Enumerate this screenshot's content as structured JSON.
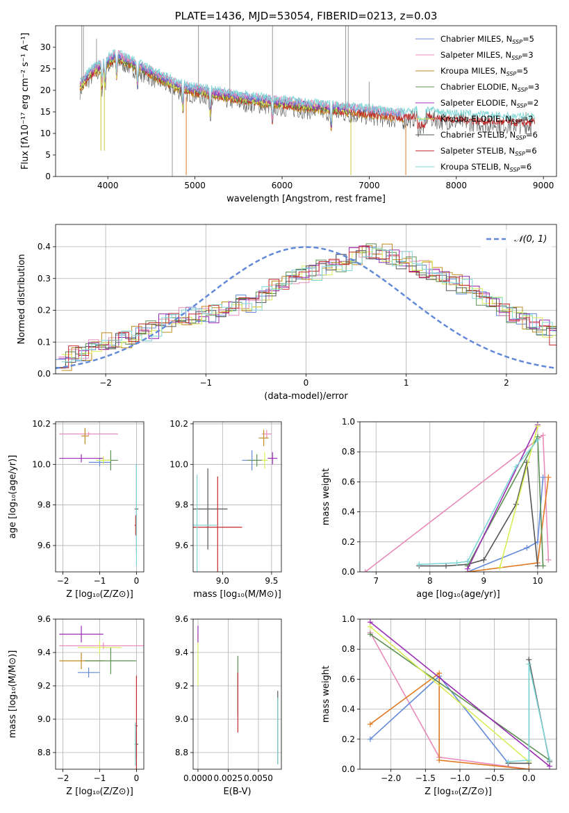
{
  "colors": {
    "Chabrier MILES": "#6289d8",
    "Salpeter MILES": "#e88bba",
    "Kroupa MILES": "#c18a1f",
    "Chabrier ELODIE": "#5b8f52",
    "Salpeter ELODIE": "#9a2bb3",
    "Kroupa ELODIE": "#d9ec55",
    "Chabrier STELIB": "#555555",
    "Salpeter STELIB": "#c42a2a",
    "Kroupa STELIB": "#7fd6d6",
    "spectrum_dark": "#777777",
    "orange": "#e07a22",
    "gauss": "#6289d8"
  },
  "chart_data": [
    {
      "id": "spectrum",
      "type": "line",
      "title": "PLATE=1436, MJD=53054, FIBERID=0213, z=0.03",
      "xlabel": "wavelength [Angstrom, rest frame]",
      "ylabel": "Flux [fλ10⁻¹⁷ erg cm⁻² s⁻¹ A⁻¹]",
      "xlim": [
        3400,
        9150
      ],
      "ylim": [
        0,
        35
      ],
      "xticks": [
        4000,
        5000,
        6000,
        7000,
        8000,
        9000
      ],
      "yticks": [
        0,
        5,
        10,
        15,
        20,
        25,
        30
      ],
      "grid": false,
      "legend_position": "top-right",
      "legend": [
        {
          "name": "Chabrier MILES",
          "n": "N_SSP=5"
        },
        {
          "name": "Salpeter MILES",
          "n": "N_SSP=3"
        },
        {
          "name": "Kroupa MILES",
          "n": "N_SSP=5"
        },
        {
          "name": "Chabrier ELODIE",
          "n": "N_SSP=3"
        },
        {
          "name": "Salpeter ELODIE",
          "n": "N_SSP=2"
        },
        {
          "name": "Kroupa ELODIE",
          "n": "N_SSP=2"
        },
        {
          "name": "Chabrier STELIB",
          "n": "N_SSP=6"
        },
        {
          "name": "Salpeter STELIB",
          "n": "N_SSP=6"
        },
        {
          "name": "Kroupa STELIB",
          "n": "N_SSP=6"
        }
      ],
      "continuum": [
        [
          3680,
          21
        ],
        [
          3800,
          24
        ],
        [
          3950,
          26
        ],
        [
          4100,
          28
        ],
        [
          4300,
          26
        ],
        [
          4500,
          24
        ],
        [
          4800,
          21
        ],
        [
          5000,
          20
        ],
        [
          5300,
          19
        ],
        [
          5600,
          18
        ],
        [
          6000,
          17
        ],
        [
          6500,
          16
        ],
        [
          7000,
          15
        ],
        [
          7400,
          14
        ],
        [
          7600,
          15
        ],
        [
          7800,
          14
        ],
        [
          8200,
          13.5
        ],
        [
          8600,
          13
        ],
        [
          8900,
          13
        ]
      ]
    },
    {
      "id": "histogram",
      "type": "step",
      "xlabel": "(data-model)/error",
      "ylabel": "Normed distribution",
      "xlim": [
        -2.5,
        2.5
      ],
      "ylim": [
        0,
        0.47
      ],
      "xticks": [
        -2,
        -1,
        0,
        1,
        2
      ],
      "yticks": [
        0.0,
        0.1,
        0.2,
        0.3,
        0.4
      ],
      "grid": true,
      "legend_position": "top-right",
      "gauss_label": "𝒩(0, 1)",
      "bin_width": 0.1,
      "base_values": [
        0.04,
        0.06,
        0.07,
        0.09,
        0.1,
        0.1,
        0.11,
        0.12,
        0.13,
        0.14,
        0.16,
        0.17,
        0.18,
        0.18,
        0.19,
        0.19,
        0.2,
        0.21,
        0.22,
        0.22,
        0.25,
        0.27,
        0.28,
        0.3,
        0.31,
        0.32,
        0.33,
        0.34,
        0.35,
        0.37,
        0.38,
        0.39,
        0.38,
        0.37,
        0.36,
        0.35,
        0.33,
        0.32,
        0.3,
        0.29,
        0.28,
        0.26,
        0.24,
        0.22,
        0.2,
        0.19,
        0.17,
        0.16,
        0.14,
        0.12
      ]
    },
    {
      "id": "age_vs_Z",
      "type": "errorbar",
      "xlabel": "Z [log₁₀(Z/Z⊙)]",
      "ylabel": "age  [log₁₀(age/yr)]",
      "xlim": [
        -2.2,
        0.2
      ],
      "ylim": [
        9.47,
        10.21
      ],
      "xticks": [
        -2,
        -1,
        0
      ],
      "yticks": [
        9.6,
        9.8,
        10.0,
        10.2
      ],
      "points": [
        {
          "s": "Chabrier MILES",
          "x": -1.0,
          "xe": 0.3,
          "y": 10.01,
          "ye": 0.02
        },
        {
          "s": "Salpeter MILES",
          "x": -1.3,
          "xe": 0.8,
          "y": 10.15,
          "ye": 0.01
        },
        {
          "s": "Kroupa MILES",
          "x": -1.4,
          "xe": 0.1,
          "y": 10.14,
          "ye": 0.04
        },
        {
          "s": "Chabrier ELODIE",
          "x": -0.7,
          "xe": 0.2,
          "y": 10.02,
          "ye": 0.05
        },
        {
          "s": "Salpeter ELODIE",
          "x": -1.5,
          "xe": 0.6,
          "y": 10.03,
          "ye": 0.02
        },
        {
          "s": "Kroupa ELODIE",
          "x": -0.9,
          "xe": 0.2,
          "y": 10.02,
          "ye": 0.02
        },
        {
          "s": "Chabrier STELIB",
          "x": 0.0,
          "xe": 0.05,
          "y": 9.78,
          "ye": 0.22
        },
        {
          "s": "Salpeter STELIB",
          "x": -0.02,
          "xe": 0.03,
          "y": 9.7,
          "ye": 0.05
        },
        {
          "s": "Kroupa STELIB",
          "x": 0.0,
          "xe": 0.02,
          "y": 9.75,
          "ye": 0.25
        }
      ]
    },
    {
      "id": "age_vs_mass",
      "type": "errorbar",
      "xlabel": "mass [log₁₀(M/M⊙)]",
      "ylabel": "",
      "xlim": [
        8.7,
        9.6
      ],
      "ylim": [
        9.47,
        10.21
      ],
      "xticks": [
        9.0,
        9.5
      ],
      "yticks": [
        9.6,
        9.8,
        10.0,
        10.2
      ],
      "points": [
        {
          "s": "Chabrier MILES",
          "x": 9.3,
          "xe": 0.1,
          "y": 10.02,
          "ye": 0.05
        },
        {
          "s": "Salpeter MILES",
          "x": 9.45,
          "xe": 0.05,
          "y": 10.15,
          "ye": 0.02
        },
        {
          "s": "Kroupa MILES",
          "x": 9.42,
          "xe": 0.05,
          "y": 10.13,
          "ye": 0.04
        },
        {
          "s": "Chabrier ELODIE",
          "x": 9.35,
          "xe": 0.1,
          "y": 10.02,
          "ye": 0.03
        },
        {
          "s": "Salpeter ELODIE",
          "x": 9.51,
          "xe": 0.05,
          "y": 10.03,
          "ye": 0.03
        },
        {
          "s": "Kroupa ELODIE",
          "x": 9.43,
          "xe": 0.03,
          "y": 10.02,
          "ye": 0.04
        },
        {
          "s": "Chabrier STELIB",
          "x": 8.85,
          "xe": 0.2,
          "y": 9.78,
          "ye": 0.2
        },
        {
          "s": "Salpeter STELIB",
          "x": 8.95,
          "xe": 0.25,
          "y": 9.69,
          "ye": 0.25
        },
        {
          "s": "Kroupa STELIB",
          "x": 8.74,
          "xe": 0.2,
          "y": 9.7,
          "ye": 0.25
        }
      ]
    },
    {
      "id": "weight_vs_age",
      "type": "line",
      "xlabel": "age  [log₁₀(age/yr)]",
      "ylabel": "mass weight",
      "xlim": [
        6.7,
        10.35
      ],
      "ylim": [
        0,
        1
      ],
      "xticks": [
        7,
        8,
        9,
        10
      ],
      "yticks": [
        0.0,
        0.2,
        0.4,
        0.6,
        0.8,
        1.0
      ],
      "series": [
        {
          "s": "Salpeter MILES",
          "x": [
            6.8,
            10.1,
            10.2
          ],
          "y": [
            0.0,
            0.91,
            0.08
          ]
        },
        {
          "s": "Chabrier MILES",
          "x": [
            8.7,
            9.8,
            10.0,
            10.1
          ],
          "y": [
            0.0,
            0.16,
            0.2,
            0.63
          ]
        },
        {
          "s": "Kroupa MILES",
          "x": [
            8.7,
            10.0,
            10.2
          ],
          "y": [
            0.0,
            0.06,
            0.63
          ]
        },
        {
          "s": "Chabrier STELIB",
          "x": [
            7.8,
            8.3,
            8.7,
            9.0,
            9.6,
            9.8,
            10.0
          ],
          "y": [
            0.04,
            0.04,
            0.05,
            0.08,
            0.45,
            0.73,
            0.04
          ]
        },
        {
          "s": "Chabrier ELODIE",
          "x": [
            8.7,
            10.0,
            10.1
          ],
          "y": [
            0.04,
            0.9,
            0.04
          ]
        },
        {
          "s": "Salpeter ELODIE",
          "x": [
            8.7,
            10.0
          ],
          "y": [
            0.02,
            0.98
          ]
        },
        {
          "s": "Kroupa ELODIE",
          "x": [
            9.3,
            10.0
          ],
          "y": [
            0.03,
            0.97
          ]
        },
        {
          "s": "Kroupa STELIB",
          "x": [
            7.8,
            8.5,
            8.7,
            9.6,
            10.0
          ],
          "y": [
            0.05,
            0.06,
            0.07,
            0.7,
            0.88
          ]
        }
      ]
    },
    {
      "id": "mass_vs_Z",
      "type": "errorbar",
      "xlabel": "Z [log₁₀(Z/Z⊙)]",
      "ylabel": "mass [log₁₀(M/M⊙)]",
      "xlim": [
        -2.2,
        0.2
      ],
      "ylim": [
        8.7,
        9.6
      ],
      "xticks": [
        -2,
        -1,
        0
      ],
      "yticks": [
        8.8,
        9.0,
        9.2,
        9.4,
        9.6
      ],
      "points": [
        {
          "s": "Chabrier MILES",
          "x": -1.3,
          "xe": 0.3,
          "y": 9.28,
          "ye": 0.03
        },
        {
          "s": "Salpeter MILES",
          "x": -0.9,
          "xe": 1.2,
          "y": 9.44,
          "ye": 0.02
        },
        {
          "s": "Kroupa MILES",
          "x": -1.5,
          "xe": 0.6,
          "y": 9.35,
          "ye": 0.05
        },
        {
          "s": "Chabrier ELODIE",
          "x": -0.7,
          "xe": 0.7,
          "y": 9.35,
          "ye": 0.08
        },
        {
          "s": "Salpeter ELODIE",
          "x": -1.5,
          "xe": 0.6,
          "y": 9.51,
          "ye": 0.05
        },
        {
          "s": "Kroupa ELODIE",
          "x": -1.0,
          "xe": 0.6,
          "y": 9.43,
          "ye": 0.04
        },
        {
          "s": "Chabrier STELIB",
          "x": 0.0,
          "xe": 0.05,
          "y": 8.85,
          "ye": 0.08
        },
        {
          "s": "Salpeter STELIB",
          "x": 0.0,
          "xe": 0.03,
          "y": 8.96,
          "ye": 0.3
        },
        {
          "s": "Kroupa STELIB",
          "x": -0.03,
          "xe": 0.02,
          "y": 8.85,
          "ye": 0.13
        }
      ]
    },
    {
      "id": "mass_vs_ebv",
      "type": "errorbar",
      "xlabel": "E(B-V)",
      "ylabel": "",
      "xlim": [
        -0.0004,
        0.0069
      ],
      "ylim": [
        8.7,
        9.6
      ],
      "xticks": [
        0.0,
        0.0025,
        0.005
      ],
      "xtick_labels": [
        "0.0000",
        "0.0025",
        "0.0050"
      ],
      "yticks": [
        8.8,
        9.0,
        9.2,
        9.4,
        9.6
      ],
      "points": [
        {
          "s": "Kroupa ELODIE",
          "x": 0.0,
          "xe": 0.0,
          "y": 9.35,
          "ye": 0.15
        },
        {
          "s": "Salpeter ELODIE",
          "x": 0.0,
          "xe": 0.0,
          "y": 9.51,
          "ye": 0.05
        },
        {
          "s": "Chabrier ELODIE",
          "x": 0.0033,
          "xe": 0.0,
          "y": 9.2,
          "ye": 0.18
        },
        {
          "s": "Salpeter STELIB",
          "x": 0.0033,
          "xe": 0.0,
          "y": 9.1,
          "ye": 0.18
        },
        {
          "s": "Chabrier STELIB",
          "x": 0.0066,
          "xe": 0.0,
          "y": 8.95,
          "ye": 0.22
        },
        {
          "s": "Kroupa STELIB",
          "x": 0.0066,
          "xe": 0.0,
          "y": 8.93,
          "ye": 0.2
        }
      ]
    },
    {
      "id": "weight_vs_Z",
      "type": "line",
      "xlabel": "Z [log₁₀(Z/Z⊙)]",
      "ylabel": "mass weight",
      "xlim": [
        -2.45,
        0.4
      ],
      "ylim": [
        0,
        1
      ],
      "xticks": [
        -2.0,
        -1.5,
        -1.0,
        -0.5,
        0.0
      ],
      "yticks": [
        0.0,
        0.2,
        0.4,
        0.6,
        0.8,
        1.0
      ],
      "series": [
        {
          "s": "Salpeter MILES",
          "x": [
            -2.3,
            -1.3,
            0.0
          ],
          "y": [
            0.91,
            0.08,
            0.0
          ]
        },
        {
          "s": "Chabrier MILES",
          "x": [
            -2.3,
            -1.3,
            -0.3
          ],
          "y": [
            0.2,
            0.62,
            0.04
          ]
        },
        {
          "s": "Kroupa MILES",
          "x": [
            -2.3,
            -1.3,
            -1.3,
            0.0
          ],
          "y": [
            0.3,
            0.64,
            0.06,
            0.0
          ]
        },
        {
          "s": "Chabrier ELODIE",
          "x": [
            -2.3,
            0.3
          ],
          "y": [
            0.9,
            0.06
          ]
        },
        {
          "s": "Salpeter ELODIE",
          "x": [
            -2.3,
            0.3
          ],
          "y": [
            0.98,
            0.02
          ]
        },
        {
          "s": "Kroupa ELODIE",
          "x": [
            -2.3,
            0.0
          ],
          "y": [
            0.95,
            0.05
          ]
        },
        {
          "s": "Chabrier STELIB",
          "x": [
            -0.3,
            0.0,
            0.0,
            0.3
          ],
          "y": [
            0.04,
            0.04,
            0.73,
            0.05
          ]
        },
        {
          "s": "Kroupa STELIB",
          "x": [
            -0.3,
            0.0,
            0.0,
            0.3
          ],
          "y": [
            0.05,
            0.06,
            0.7,
            0.06
          ]
        }
      ]
    }
  ]
}
